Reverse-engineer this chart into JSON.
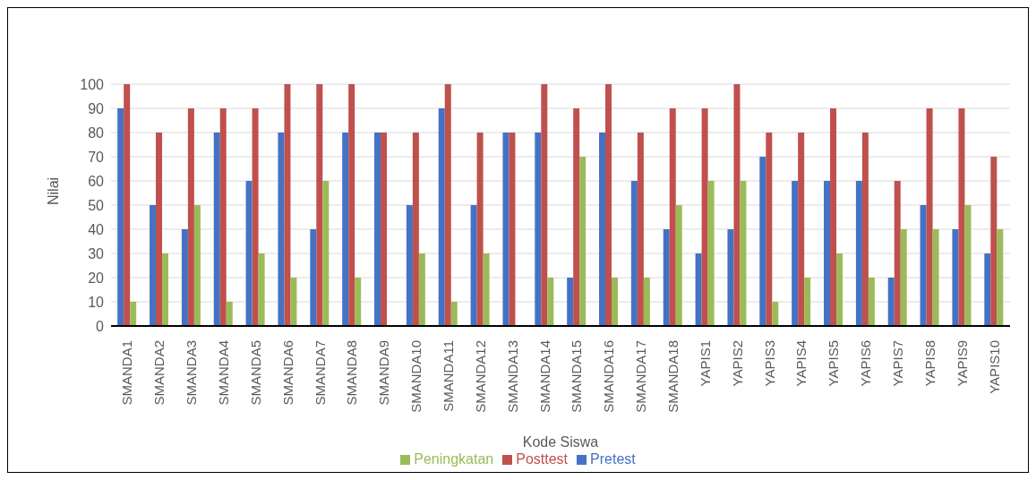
{
  "chart_data": {
    "type": "bar",
    "xlabel": "Kode Siswa",
    "ylabel": "Nilai",
    "categories": [
      "SMANDA1",
      "SMANDA2",
      "SMANDA3",
      "SMANDA4",
      "SMANDA5",
      "SMANDA6",
      "SMANDA7",
      "SMANDA8",
      "SMANDA9",
      "SMANDA10",
      "SMANDA11",
      "SMANDA12",
      "SMANDA13",
      "SMANDA14",
      "SMANDA15",
      "SMANDA16",
      "SMANDA17",
      "SMANDA18",
      "YAPIS1",
      "YAPIS2",
      "YAPIS3",
      "YAPIS4",
      "YAPIS5",
      "YAPIS6",
      "YAPIS7",
      "YAPIS8",
      "YAPIS9",
      "YAPIS10"
    ],
    "series": [
      {
        "name": "Pretest",
        "color": "#4472c4",
        "values": [
          90,
          50,
          40,
          80,
          60,
          80,
          40,
          80,
          80,
          50,
          90,
          50,
          80,
          80,
          20,
          80,
          60,
          40,
          30,
          40,
          70,
          60,
          60,
          60,
          20,
          50,
          40,
          30
        ]
      },
      {
        "name": "Posttest",
        "color": "#c0504d",
        "values": [
          100,
          80,
          90,
          90,
          90,
          100,
          100,
          100,
          80,
          80,
          100,
          80,
          80,
          100,
          90,
          100,
          80,
          90,
          90,
          100,
          80,
          80,
          90,
          80,
          60,
          90,
          90,
          70
        ]
      },
      {
        "name": "Peningkatan",
        "color": "#9bbb59",
        "values": [
          10,
          30,
          50,
          10,
          30,
          20,
          60,
          20,
          0,
          30,
          10,
          30,
          0,
          20,
          70,
          20,
          20,
          50,
          60,
          60,
          10,
          20,
          30,
          20,
          40,
          40,
          50,
          40
        ]
      }
    ],
    "ylim": [
      0,
      100
    ],
    "yticks": [
      0,
      10,
      20,
      30,
      40,
      50,
      60,
      70,
      80,
      90,
      100
    ],
    "grid": "y",
    "legend": "bottom"
  }
}
